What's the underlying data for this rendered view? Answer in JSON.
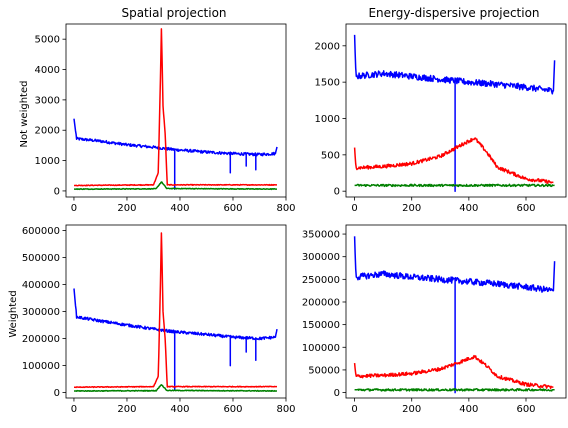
{
  "figure": {
    "col_titles": [
      "Spatial projection",
      "Energy-dispersive projection"
    ],
    "row_labels": [
      "Not weighted",
      "Weighted"
    ]
  },
  "colors": {
    "blue": "#0000ff",
    "red": "#ff0000",
    "green": "#008000"
  },
  "chart_data": [
    {
      "type": "line",
      "title": "Spatial projection",
      "ylabel": "Not weighted",
      "xlim": [
        -30,
        800
      ],
      "ylim": [
        -200,
        5500
      ],
      "xticks": [
        0,
        200,
        400,
        600,
        800
      ],
      "yticks": [
        0,
        1000,
        2000,
        3000,
        4000,
        5000
      ],
      "grid": false,
      "series": [
        {
          "color": "blue",
          "shape": "spatial",
          "points": [
            [
              0,
              2380
            ],
            [
              10,
              1720
            ],
            [
              100,
              1640
            ],
            [
              200,
              1520
            ],
            [
              300,
              1440
            ],
            [
              380,
              1360
            ],
            [
              500,
              1280
            ],
            [
              600,
              1230
            ],
            [
              700,
              1200
            ],
            [
              760,
              1230
            ],
            [
              766,
              1450
            ]
          ],
          "dips": [
            [
              380,
              60
            ],
            [
              590,
              600
            ],
            [
              650,
              820
            ],
            [
              685,
              700
            ]
          ]
        },
        {
          "color": "red",
          "shape": "peak",
          "points": [
            [
              0,
              180
            ],
            [
              300,
              200
            ],
            [
              318,
              600
            ],
            [
              324,
              2800
            ],
            [
              330,
              5330
            ],
            [
              336,
              2800
            ],
            [
              344,
              1900
            ],
            [
              352,
              200
            ],
            [
              766,
              200
            ]
          ]
        },
        {
          "color": "green",
          "shape": "peak",
          "points": [
            [
              0,
              60
            ],
            [
              310,
              70
            ],
            [
              330,
              300
            ],
            [
              350,
              80
            ],
            [
              766,
              60
            ]
          ]
        }
      ]
    },
    {
      "type": "line",
      "title": "Energy-dispersive projection",
      "ylabel": "",
      "xlim": [
        -30,
        740
      ],
      "ylim": [
        -80,
        2300
      ],
      "xticks": [
        0,
        200,
        400,
        600
      ],
      "yticks": [
        0,
        500,
        1000,
        1500,
        2000
      ],
      "grid": false,
      "series": [
        {
          "color": "blue",
          "shape": "energy",
          "points": [
            [
              0,
              2150
            ],
            [
              5,
              1580
            ],
            [
              100,
              1620
            ],
            [
              200,
              1580
            ],
            [
              300,
              1540
            ],
            [
              400,
              1500
            ],
            [
              500,
              1470
            ],
            [
              600,
              1430
            ],
            [
              696,
              1380
            ],
            [
              700,
              1800
            ]
          ],
          "dips": [
            [
              352,
              0
            ],
            [
              703,
              0
            ]
          ]
        },
        {
          "color": "red",
          "shape": "bump",
          "points": [
            [
              0,
              600
            ],
            [
              5,
              320
            ],
            [
              100,
              340
            ],
            [
              200,
              380
            ],
            [
              300,
              480
            ],
            [
              380,
              650
            ],
            [
              420,
              730
            ],
            [
              460,
              550
            ],
            [
              500,
              330
            ],
            [
              600,
              170
            ],
            [
              696,
              120
            ]
          ]
        },
        {
          "color": "green",
          "shape": "flat",
          "points": [
            [
              0,
              80
            ],
            [
              700,
              80
            ]
          ]
        }
      ]
    },
    {
      "type": "line",
      "title": "",
      "ylabel": "Weighted",
      "xlim": [
        -30,
        800
      ],
      "ylim": [
        -20000,
        620000
      ],
      "xticks": [
        0,
        200,
        400,
        600,
        800
      ],
      "yticks": [
        0,
        100000,
        200000,
        300000,
        400000,
        500000,
        600000
      ],
      "grid": false,
      "series": [
        {
          "color": "blue",
          "shape": "spatial",
          "points": [
            [
              0,
              385000
            ],
            [
              10,
              280000
            ],
            [
              100,
              265000
            ],
            [
              200,
              250000
            ],
            [
              300,
              235000
            ],
            [
              380,
              225000
            ],
            [
              500,
              215000
            ],
            [
              600,
              205000
            ],
            [
              700,
              200000
            ],
            [
              760,
              205000
            ],
            [
              766,
              235000
            ]
          ],
          "dips": [
            [
              380,
              10000
            ],
            [
              590,
              100000
            ],
            [
              650,
              150000
            ],
            [
              685,
              120000
            ]
          ]
        },
        {
          "color": "red",
          "shape": "peak",
          "points": [
            [
              0,
              20000
            ],
            [
              300,
              22000
            ],
            [
              318,
              60000
            ],
            [
              324,
              300000
            ],
            [
              330,
              590000
            ],
            [
              336,
              300000
            ],
            [
              344,
              200000
            ],
            [
              352,
              22000
            ],
            [
              766,
              22000
            ]
          ]
        },
        {
          "color": "green",
          "shape": "peak",
          "points": [
            [
              0,
              6000
            ],
            [
              310,
              7000
            ],
            [
              330,
              30000
            ],
            [
              350,
              8000
            ],
            [
              766,
              6000
            ]
          ]
        }
      ]
    },
    {
      "type": "line",
      "title": "",
      "ylabel": "",
      "xlim": [
        -30,
        740
      ],
      "ylim": [
        -12000,
        370000
      ],
      "xticks": [
        0,
        200,
        400,
        600
      ],
      "yticks": [
        0,
        50000,
        100000,
        150000,
        200000,
        250000,
        300000,
        350000
      ],
      "grid": false,
      "series": [
        {
          "color": "blue",
          "shape": "energy",
          "points": [
            [
              0,
              345000
            ],
            [
              5,
              255000
            ],
            [
              100,
              262000
            ],
            [
              200,
              255000
            ],
            [
              300,
              250000
            ],
            [
              400,
              245000
            ],
            [
              500,
              240000
            ],
            [
              600,
              233000
            ],
            [
              696,
              225000
            ],
            [
              700,
              290000
            ]
          ],
          "dips": [
            [
              352,
              0
            ],
            [
              703,
              0
            ]
          ]
        },
        {
          "color": "red",
          "shape": "bump",
          "points": [
            [
              0,
              65000
            ],
            [
              5,
              36000
            ],
            [
              100,
              38000
            ],
            [
              200,
              42000
            ],
            [
              300,
              52000
            ],
            [
              380,
              70000
            ],
            [
              420,
              80000
            ],
            [
              460,
              60000
            ],
            [
              500,
              36000
            ],
            [
              600,
              18000
            ],
            [
              696,
              12000
            ]
          ]
        },
        {
          "color": "green",
          "shape": "flat",
          "points": [
            [
              0,
              6000
            ],
            [
              700,
              6000
            ]
          ]
        }
      ]
    }
  ]
}
